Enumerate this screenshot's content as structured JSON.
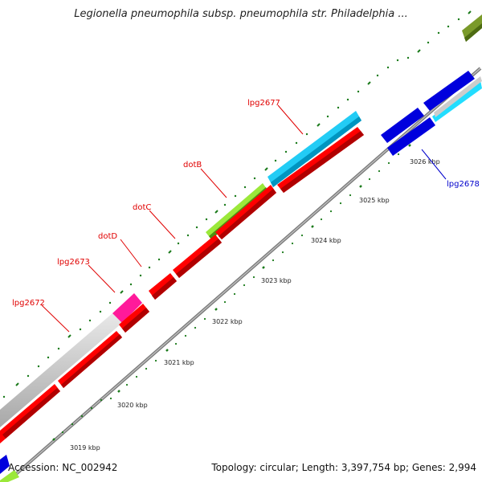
{
  "title": "Legionella pneumophila subsp. pneumophila str. Philadelphia ...",
  "footer": {
    "accession": "Accession: NC_002942",
    "topology": "Topology: circular; Length: 3,397,754 bp; Genes: 2,994"
  },
  "colors": {
    "background": "#ffffff",
    "reverse_gene": "#ff0000",
    "forward_gene": "#0000ee",
    "highlight_gene": "#00c0ff",
    "gray_gene": "#c8c8c8",
    "pink_gene": "#ff1493",
    "green_gene": "#7fd000",
    "olive_gene": "#6b8e23",
    "backbone": "#888888",
    "tick": "#008000",
    "label_red": "#e00000",
    "label_blue": "#0000cc"
  },
  "scale_labels": [
    "3019 kbp",
    "3020 kbp",
    "3021 kbp",
    "3022 kbp",
    "3023 kbp",
    "3024 kbp",
    "3025 kbp",
    "3026 kbp"
  ],
  "gene_labels": [
    {
      "name": "lpg2672",
      "strand": "reverse"
    },
    {
      "name": "lpg2673",
      "strand": "reverse"
    },
    {
      "name": "dotD",
      "strand": "reverse"
    },
    {
      "name": "dotC",
      "strand": "reverse"
    },
    {
      "name": "dotB",
      "strand": "reverse"
    },
    {
      "name": "lpg2677",
      "strand": "reverse"
    },
    {
      "name": "lpg2678",
      "strand": "forward"
    }
  ]
}
